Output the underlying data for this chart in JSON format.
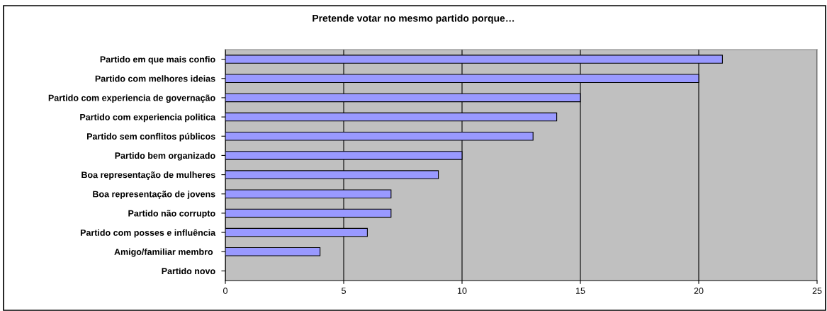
{
  "chart_data": {
    "type": "bar",
    "orientation": "horizontal",
    "title": "Pretende votar no mesmo partido porque…",
    "categories": [
      "Partido em que mais confio",
      "Partido com melhores ideias",
      "Partido com experiencia de governação",
      "Partido com experiencia politica",
      "Partido sem conflitos públicos",
      "Partido bem organizado",
      "Boa representação de mulheres",
      "Boa representação de jovens",
      "Partido não corrupto",
      "Partido com posses e influência",
      "Amigo/familiar membro ",
      "Partido novo"
    ],
    "values": [
      21,
      20,
      15,
      14,
      13,
      10,
      9,
      7,
      7,
      6,
      4,
      0
    ],
    "color": "#9999ff",
    "xlim": [
      0,
      25
    ],
    "xticks": [
      0,
      5,
      10,
      15,
      20,
      25
    ],
    "grid": "x"
  }
}
